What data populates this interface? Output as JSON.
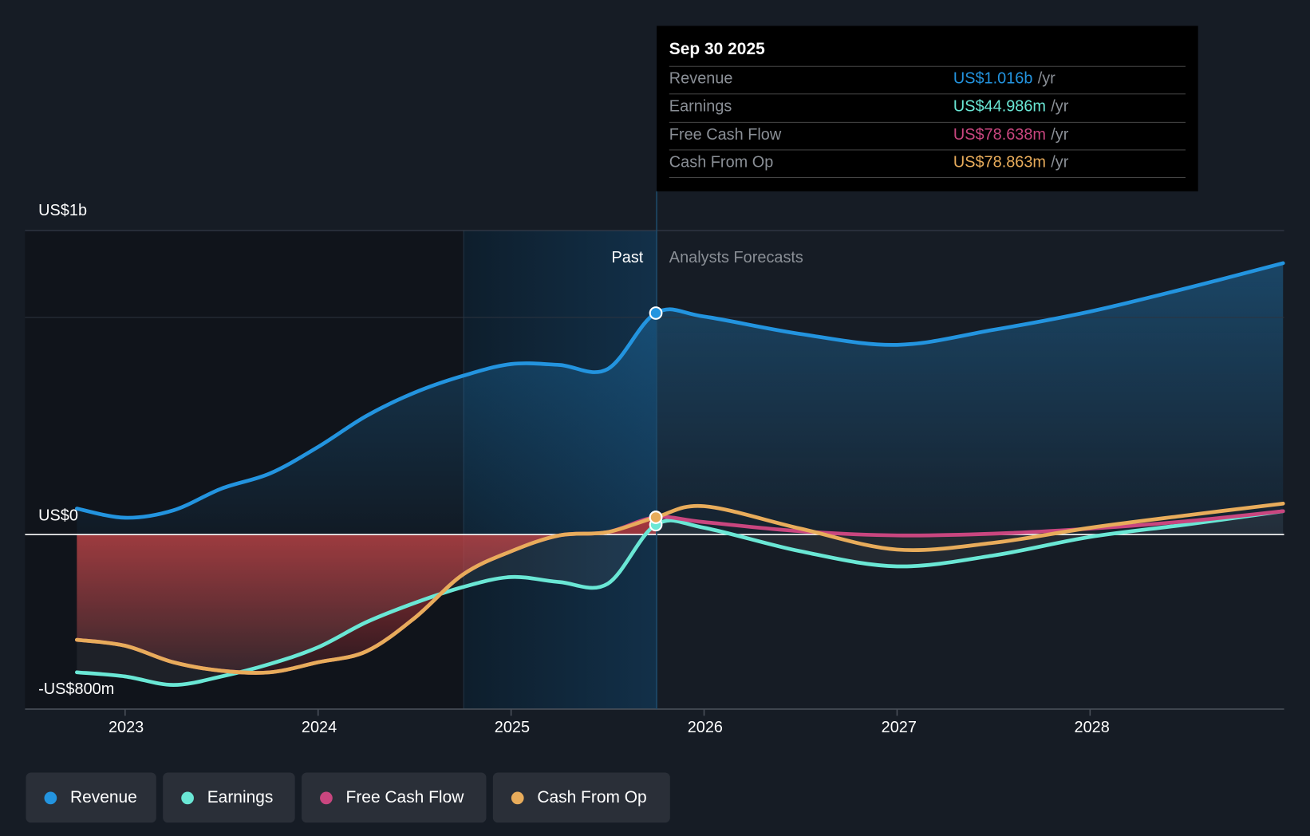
{
  "colors": {
    "revenue": "#2394df",
    "earnings": "#6ae7d5",
    "free_cash_flow": "#c9467f",
    "cash_from_op": "#e8ac5b",
    "background": "#161c25"
  },
  "tooltip": {
    "date": "Sep 30 2025",
    "rows": [
      {
        "label": "Revenue",
        "value": "US$1.016b",
        "unit": "/yr"
      },
      {
        "label": "Earnings",
        "value": "US$44.986m",
        "unit": "/yr"
      },
      {
        "label": "Free Cash Flow",
        "value": "US$78.638m",
        "unit": "/yr"
      },
      {
        "label": "Cash From Op",
        "value": "US$78.863m",
        "unit": "/yr"
      }
    ]
  },
  "regions": {
    "past": "Past",
    "forecast": "Analysts Forecasts"
  },
  "legend": [
    {
      "label": "Revenue",
      "color": "#2394df"
    },
    {
      "label": "Earnings",
      "color": "#6ae7d5"
    },
    {
      "label": "Free Cash Flow",
      "color": "#c9467f"
    },
    {
      "label": "Cash From Op",
      "color": "#e8ac5b"
    }
  ],
  "chart_data": {
    "type": "line",
    "title": "",
    "xlabel": "",
    "ylabel": "",
    "y_unit": "US$ millions",
    "x_ticks": [
      "2023",
      "2024",
      "2025",
      "2026",
      "2027",
      "2028"
    ],
    "y_tick_labels": [
      "US$1b",
      "US$0",
      "-US$800m"
    ],
    "xlim": [
      2022.74,
      2028.99
    ],
    "ylim": [
      -800,
      1395
    ],
    "past_until": 2025.75,
    "highlight_from": 2024.75,
    "x": [
      2022.75,
      2023,
      2023.25,
      2023.5,
      2023.75,
      2024,
      2024.25,
      2024.5,
      2024.75,
      2025,
      2025.25,
      2025.5,
      2025.75,
      2026,
      2026.5,
      2027,
      2027.5,
      2028,
      2028.5,
      2029
    ],
    "series": [
      {
        "name": "Revenue",
        "values": [
          119,
          77,
          111,
          211,
          280,
          402,
          544,
          651,
          728,
          782,
          778,
          759,
          1016,
          1000,
          920,
          870,
          939,
          1023,
          1130,
          1245
        ]
      },
      {
        "name": "Earnings",
        "values": [
          -632,
          -651,
          -690,
          -651,
          -594,
          -517,
          -402,
          -314,
          -241,
          -195,
          -218,
          -226,
          45,
          31,
          -77,
          -146,
          -96,
          -11,
          46,
          107
        ]
      },
      {
        "name": "Free Cash Flow",
        "values": [
          -483,
          -510,
          -586,
          -625,
          -632,
          -586,
          -536,
          -383,
          -184,
          -77,
          -4,
          11,
          79,
          57,
          15,
          -4,
          4,
          27,
          61,
          107
        ]
      },
      {
        "name": "Cash From Op",
        "values": [
          -483,
          -510,
          -586,
          -625,
          -632,
          -586,
          -536,
          -383,
          -184,
          -77,
          -4,
          11,
          79,
          130,
          27,
          -69,
          -38,
          31,
          88,
          142
        ]
      }
    ]
  }
}
